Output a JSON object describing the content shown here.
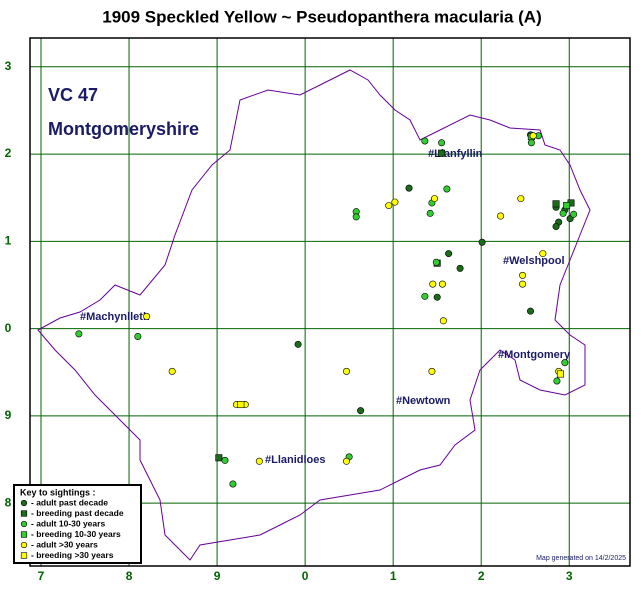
{
  "chart_data": {
    "type": "scatter",
    "title": "1909 Speckled Yellow ~ Pseudopanthera macularia (A)",
    "region_code": "VC 47",
    "region_name": "Montgomeryshire",
    "places": [
      "#Llanfyllin",
      "#Welshpool",
      "#Machynlleth",
      "#Montgomery",
      "#Newtown",
      "#Llanidloes"
    ],
    "legend_title": "Key to sightings :",
    "footer": "Map generated on 14/2/2025",
    "grid": true,
    "xlim": [
      -0.125,
      6.69
    ],
    "ylim": [
      -0.72,
      5.33
    ],
    "xticks": [
      {
        "value": 0,
        "label": "7"
      },
      {
        "value": 1,
        "label": "8"
      },
      {
        "value": 2,
        "label": "9"
      },
      {
        "value": 3,
        "label": "0"
      },
      {
        "value": 4,
        "label": "1"
      },
      {
        "value": 5,
        "label": "2"
      },
      {
        "value": 6,
        "label": "3"
      }
    ],
    "yticks": [
      {
        "value": 0,
        "label": "8"
      },
      {
        "value": 1,
        "label": "9"
      },
      {
        "value": 2,
        "label": "0"
      },
      {
        "value": 3,
        "label": "1"
      },
      {
        "value": 4,
        "label": "2"
      },
      {
        "value": 5,
        "label": "3"
      }
    ],
    "series": [
      {
        "name": "- adult past decade",
        "color": "#1b6b1b",
        "marker": "circle",
        "x": [
          2.92,
          3.63,
          4.18,
          4.76,
          4.63,
          5.01,
          4.5,
          5.56,
          5.85,
          5.88,
          5.95,
          6.01,
          5.85,
          5.56
        ],
        "values": [
          1.82,
          1.06,
          3.61,
          2.69,
          2.86,
          2.99,
          2.36,
          2.2,
          3.39,
          3.22,
          3.36,
          3.26,
          3.17,
          4.22
        ]
      },
      {
        "name": "- breeding past decade",
        "color": "#1b6b1b",
        "marker": "square",
        "x": [
          2.02,
          4.5,
          4.55,
          6.02,
          5.85
        ],
        "values": [
          0.52,
          2.75,
          4.01,
          3.44,
          3.43
        ]
      },
      {
        "name": "- adult 10-30 years",
        "color": "#33cc33",
        "marker": "circle",
        "x": [
          0.43,
          1.1,
          2.18,
          2.09,
          3.5,
          3.58,
          3.58,
          4.36,
          4.42,
          4.44,
          4.61,
          4.55,
          4.36,
          4.49,
          5.57,
          5.65,
          5.93,
          5.95,
          5.86,
          6.05
        ],
        "values": [
          1.94,
          1.91,
          0.22,
          0.49,
          0.53,
          3.34,
          3.28,
          2.37,
          3.32,
          3.44,
          3.6,
          4.13,
          4.15,
          2.76,
          4.13,
          4.21,
          3.32,
          1.61,
          1.4,
          3.31
        ]
      },
      {
        "name": "- breeding 10-30 years",
        "color": "#33cc33",
        "marker": "square",
        "x": [
          5.57,
          5.97
        ],
        "values": [
          4.2,
          3.41
        ]
      },
      {
        "name": "- adult >30 years",
        "color": "#ffff00",
        "marker": "circle",
        "x": [
          1.2,
          1.49,
          2.22,
          2.32,
          2.48,
          3.47,
          3.47,
          3.95,
          4.02,
          4.44,
          4.45,
          4.56,
          4.57,
          4.47,
          5.22,
          5.45,
          5.47,
          5.47,
          5.7,
          5.88,
          5.59
        ],
        "values": [
          2.14,
          1.51,
          1.13,
          1.13,
          0.48,
          0.48,
          1.51,
          3.41,
          3.45,
          1.51,
          2.51,
          2.51,
          2.09,
          3.49,
          3.29,
          3.49,
          2.51,
          2.61,
          2.86,
          1.51,
          4.21
        ]
      },
      {
        "name": "- breeding >30 years",
        "color": "#ffff00",
        "marker": "square",
        "x": [
          5.9,
          2.27
        ],
        "values": [
          1.48,
          1.13
        ]
      }
    ]
  }
}
